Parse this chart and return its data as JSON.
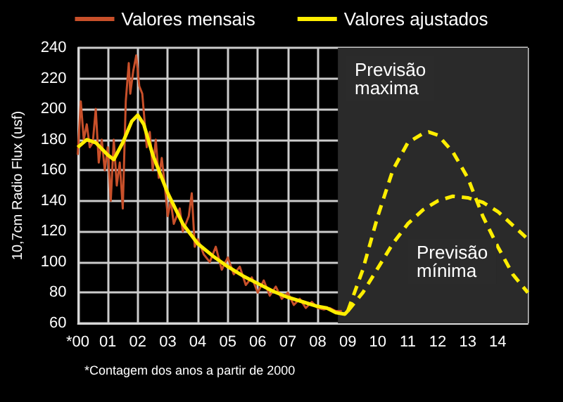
{
  "chart_data": {
    "type": "line",
    "ylabel": "10,7cm Radio Flux (usf)",
    "xlim": [
      0,
      15
    ],
    "xticks": [
      {
        "value": 0,
        "label": "*00"
      },
      {
        "value": 1,
        "label": "01"
      },
      {
        "value": 2,
        "label": "02"
      },
      {
        "value": 3,
        "label": "03"
      },
      {
        "value": 4,
        "label": "04"
      },
      {
        "value": 5,
        "label": "05"
      },
      {
        "value": 6,
        "label": "06"
      },
      {
        "value": 7,
        "label": "07"
      },
      {
        "value": 8,
        "label": "08"
      },
      {
        "value": 9,
        "label": "09"
      },
      {
        "value": 10,
        "label": "10"
      },
      {
        "value": 11,
        "label": "11"
      },
      {
        "value": 12,
        "label": "12"
      },
      {
        "value": 13,
        "label": "13"
      },
      {
        "value": 14,
        "label": "14"
      },
      {
        "value": 15,
        "label": null
      }
    ],
    "ylim": [
      60,
      240
    ],
    "yticks": [
      60,
      80,
      100,
      120,
      140,
      160,
      180,
      200,
      220,
      240
    ],
    "grid": true,
    "legend": "top",
    "marker": "none",
    "series": [
      {
        "name": "Valores mensais",
        "color": "#c8502a",
        "line_style": "solid",
        "x": [
          0,
          0.1,
          0.2,
          0.3,
          0.4,
          0.5,
          0.6,
          0.7,
          0.8,
          0.9,
          1.0,
          1.1,
          1.2,
          1.3,
          1.4,
          1.5,
          1.6,
          1.7,
          1.75,
          1.85,
          1.95,
          2.05,
          2.15,
          2.3,
          2.4,
          2.5,
          2.6,
          2.7,
          2.8,
          2.9,
          3.0,
          3.1,
          3.2,
          3.4,
          3.5,
          3.7,
          3.8,
          3.9,
          4.0,
          4.2,
          4.4,
          4.6,
          4.8,
          5.0,
          5.2,
          5.4,
          5.6,
          5.8,
          6.0,
          6.2,
          6.4,
          6.6,
          6.8,
          7.0,
          7.2,
          7.4,
          7.6,
          7.8,
          8.0,
          8.2,
          8.4,
          8.6,
          8.8
        ],
        "values": [
          170,
          205,
          180,
          190,
          175,
          178,
          200,
          165,
          180,
          160,
          175,
          140,
          180,
          150,
          165,
          135,
          205,
          230,
          210,
          225,
          235,
          215,
          210,
          175,
          185,
          160,
          180,
          155,
          168,
          150,
          130,
          140,
          125,
          135,
          120,
          130,
          145,
          110,
          115,
          105,
          100,
          110,
          95,
          103,
          92,
          97,
          85,
          90,
          80,
          88,
          78,
          84,
          76,
          80,
          72,
          76,
          70,
          74,
          70,
          69,
          70,
          68,
          68
        ]
      },
      {
        "name": "Valores ajustados",
        "color": "#ffee00",
        "line_style": "solid",
        "x": [
          0,
          0.3,
          0.6,
          1.0,
          1.2,
          1.5,
          1.8,
          2.0,
          2.2,
          2.5,
          3.0,
          3.5,
          4.0,
          4.5,
          5.0,
          5.5,
          6.0,
          6.5,
          7.0,
          7.5,
          8.0,
          8.3,
          8.6,
          8.9,
          9.0
        ],
        "values": [
          175,
          180,
          178,
          170,
          167,
          178,
          192,
          196,
          190,
          170,
          145,
          125,
          112,
          104,
          97,
          91,
          86,
          81,
          77,
          74,
          71,
          70,
          67,
          66,
          68
        ]
      },
      {
        "color": "#ffee00",
        "line_style": "dashed",
        "x": [
          9.0,
          9.5,
          10,
          10.5,
          11,
          11.5,
          11.7,
          12,
          12.5,
          13,
          13.5,
          14,
          14.5,
          15
        ],
        "values": [
          68,
          95,
          130,
          160,
          178,
          184,
          185,
          183,
          172,
          155,
          130,
          110,
          92,
          80
        ]
      },
      {
        "color": "#ffee00",
        "line_style": "dashed",
        "x": [
          9.0,
          9.5,
          10,
          10.5,
          11,
          11.5,
          12,
          12.5,
          13,
          13.5,
          14,
          14.5,
          15
        ],
        "values": [
          68,
          80,
          96,
          112,
          125,
          134,
          140,
          143,
          142,
          139,
          133,
          124,
          115
        ]
      }
    ],
    "bands": [
      {
        "axis": "x",
        "from": 8.67,
        "to": 15,
        "color": "#2a2a2a"
      }
    ],
    "annotations": [
      "Previsão\nmaxima",
      "Previsão\nmínima",
      "*Contagem dos anos a partir de 2000"
    ]
  }
}
